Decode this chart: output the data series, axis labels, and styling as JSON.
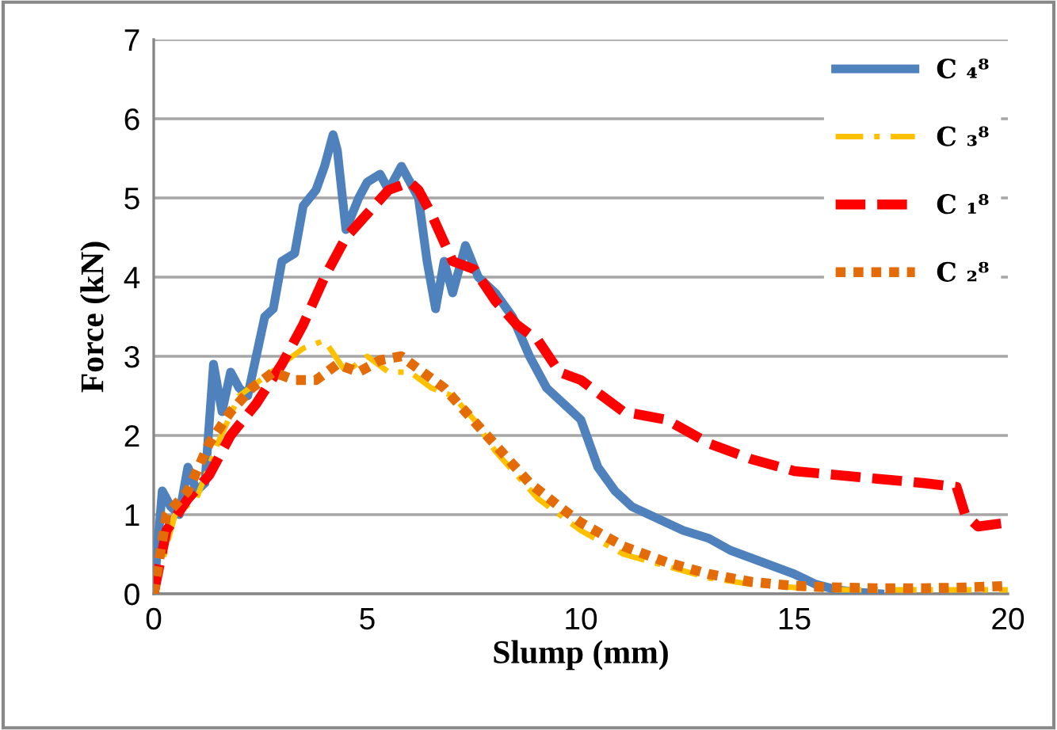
{
  "chart_data": {
    "type": "line",
    "xlabel": "Slump (mm)",
    "ylabel": "Force (kN)",
    "xlim": [
      0,
      20
    ],
    "xticks": [
      0,
      5,
      10,
      15,
      20
    ],
    "ylim": [
      0,
      7
    ],
    "yticks": [
      0,
      1,
      2,
      3,
      4,
      5,
      6,
      7
    ],
    "grid": "y",
    "legend": "top right",
    "marker": "none",
    "series": [
      {
        "name": "C ₄⁸",
        "color": "#4f81bd",
        "line_style": "solid",
        "x": [
          0,
          0.2,
          0.4,
          0.6,
          0.8,
          1.0,
          1.2,
          1.4,
          1.6,
          1.8,
          2.0,
          2.2,
          2.4,
          2.6,
          2.8,
          3.0,
          3.3,
          3.5,
          3.8,
          4.0,
          4.2,
          4.3,
          4.5,
          4.8,
          5.0,
          5.3,
          5.5,
          5.8,
          6.0,
          6.2,
          6.4,
          6.6,
          6.8,
          7.0,
          7.3,
          7.6,
          8.0,
          8.4,
          8.8,
          9.2,
          9.6,
          10.0,
          10.4,
          10.8,
          11.2,
          11.6,
          12.0,
          12.4,
          13.0,
          13.5,
          14.0,
          14.5,
          15.0,
          15.5,
          16.0,
          16.5,
          17.0
        ],
        "values": [
          0,
          1.3,
          1.1,
          1.0,
          1.6,
          1.3,
          1.4,
          2.9,
          2.3,
          2.8,
          2.6,
          2.5,
          3.0,
          3.5,
          3.6,
          4.2,
          4.3,
          4.9,
          5.1,
          5.4,
          5.8,
          5.6,
          4.6,
          5.0,
          5.2,
          5.3,
          5.1,
          5.4,
          5.2,
          5.0,
          4.2,
          3.6,
          4.2,
          3.8,
          4.4,
          4.0,
          3.8,
          3.5,
          3.0,
          2.6,
          2.4,
          2.2,
          1.6,
          1.3,
          1.1,
          1.0,
          0.9,
          0.8,
          0.7,
          0.55,
          0.45,
          0.35,
          0.25,
          0.12,
          0.05,
          0.02,
          0.0
        ]
      },
      {
        "name": "C ₃⁸",
        "color": "#ffc000",
        "line_style": "dashdot",
        "x": [
          0,
          0.5,
          1.0,
          1.5,
          2.0,
          2.5,
          3.0,
          3.5,
          4.0,
          4.5,
          5.0,
          5.5,
          6.0,
          6.5,
          7.0,
          7.5,
          8.0,
          8.5,
          9.0,
          10,
          11,
          12,
          13,
          14,
          15,
          16,
          17,
          18,
          19,
          20
        ],
        "values": [
          0,
          1.0,
          1.2,
          1.9,
          2.5,
          2.7,
          2.9,
          3.1,
          3.2,
          2.8,
          3.0,
          2.8,
          2.8,
          2.6,
          2.5,
          2.2,
          1.8,
          1.5,
          1.2,
          0.8,
          0.5,
          0.35,
          0.2,
          0.12,
          0.08,
          0.05,
          0.05,
          0.05,
          0.05,
          0.05
        ]
      },
      {
        "name": "C ₁⁸",
        "color": "#ff0000",
        "line_style": "dashed",
        "x": [
          0,
          0.3,
          0.8,
          1.3,
          1.8,
          2.4,
          3.0,
          3.5,
          4.0,
          4.5,
          5.0,
          5.5,
          6.0,
          6.2,
          6.5,
          7.0,
          7.5,
          8.0,
          8.5,
          9.0,
          9.5,
          10.0,
          10.5,
          11.0,
          12.0,
          13.0,
          14.0,
          15.0,
          16.0,
          17.0,
          18.0,
          18.8,
          19.0,
          19.3,
          20.0
        ],
        "values": [
          0,
          0.8,
          1.2,
          1.5,
          2.0,
          2.4,
          2.9,
          3.4,
          4.0,
          4.5,
          4.8,
          5.1,
          5.2,
          5.1,
          4.8,
          4.2,
          4.1,
          3.7,
          3.4,
          3.2,
          2.8,
          2.7,
          2.5,
          2.3,
          2.2,
          1.9,
          1.7,
          1.55,
          1.5,
          1.45,
          1.4,
          1.35,
          1.0,
          0.85,
          0.9
        ]
      },
      {
        "name": "C ₂⁸",
        "color": "#e36c09",
        "line_style": "dotted",
        "x": [
          0,
          0.3,
          0.8,
          1.3,
          1.8,
          2.3,
          2.8,
          3.3,
          3.8,
          4.3,
          4.8,
          5.3,
          5.8,
          6.3,
          6.8,
          7.3,
          7.8,
          8.3,
          8.8,
          9.5,
          10,
          11,
          12,
          13,
          14,
          15,
          16,
          17,
          18,
          19,
          20
        ],
        "values": [
          0,
          1.0,
          1.3,
          1.9,
          2.3,
          2.6,
          2.8,
          2.7,
          2.7,
          2.9,
          2.8,
          2.95,
          3.0,
          2.8,
          2.6,
          2.3,
          2.0,
          1.7,
          1.4,
          1.1,
          0.9,
          0.6,
          0.4,
          0.25,
          0.15,
          0.1,
          0.08,
          0.07,
          0.07,
          0.08,
          0.1
        ]
      }
    ]
  }
}
